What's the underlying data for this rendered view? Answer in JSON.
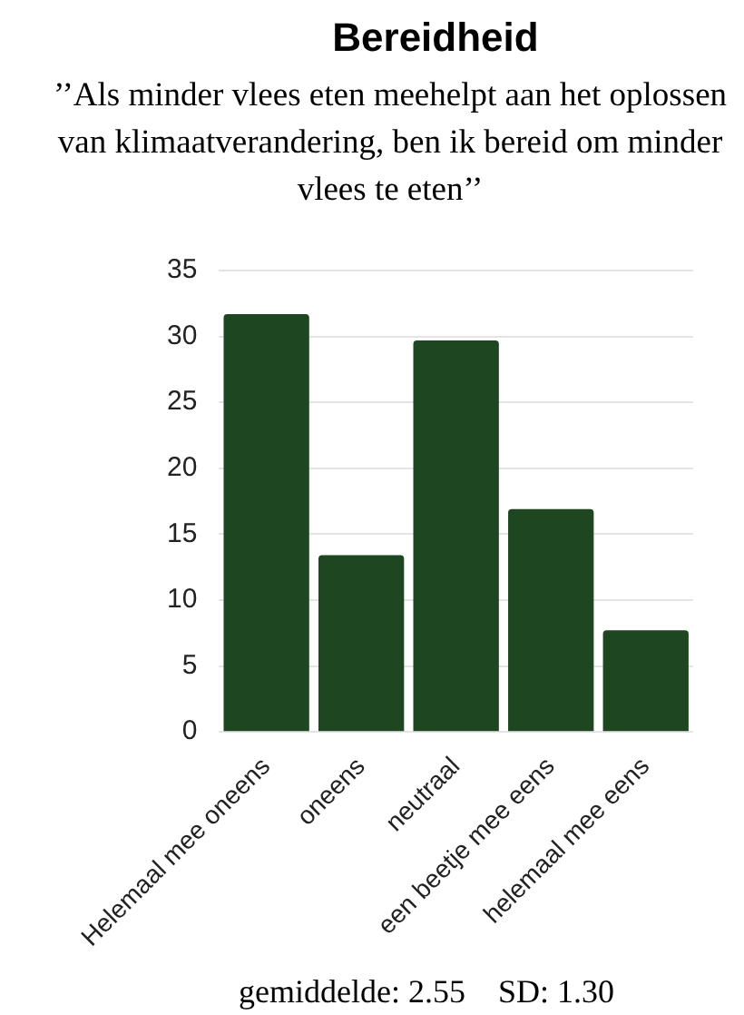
{
  "chart_data": {
    "type": "bar",
    "title": "Bereidheid",
    "subtitle": "’’Als minder vlees eten meehelpt aan het oplossen van klimaatverandering, ben ik bereid om minder vlees te eten’’",
    "categories": [
      "Helemaal mee oneens",
      "oneens",
      "neutraal",
      "een beetje mee eens",
      "helemaal mee eens"
    ],
    "values": [
      31.7,
      13.4,
      29.7,
      16.9,
      7.7
    ],
    "color": "#1e4620",
    "ylim": [
      0,
      35
    ],
    "yticks": [
      0,
      5,
      10,
      15,
      20,
      25,
      30,
      35
    ],
    "grid": "y",
    "legend": false,
    "annotations": [
      "gemiddelde: 2.55    SD: 1.30"
    ]
  }
}
